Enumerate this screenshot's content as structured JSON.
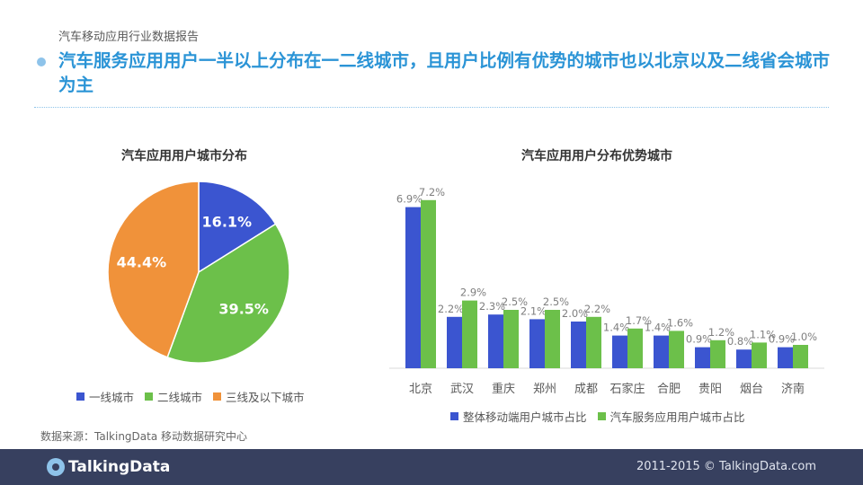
{
  "header": {
    "report_label": "汽车移动应用行业数据报告",
    "headline": "汽车服务应用用户一半以上分布在一二线城市，且用户比例有优势的城市也以北京以及二线省会城市为主"
  },
  "colors": {
    "accent": "#2b94d6",
    "blue": "#3b55d0",
    "green": "#6cc04a",
    "orange": "#f0923a",
    "footer": "#37405f"
  },
  "chart_data": [
    {
      "type": "pie",
      "title": "汽车应用用户城市分布",
      "slices": [
        {
          "label": "一线城市",
          "value": 16.1,
          "value_label": "16.1%",
          "color": "#3b55d0"
        },
        {
          "label": "二线城市",
          "value": 39.5,
          "value_label": "39.5%",
          "color": "#6cc04a"
        },
        {
          "label": "三线及以下城市",
          "value": 44.4,
          "value_label": "44.4%",
          "color": "#f0923a"
        }
      ],
      "legend_position": "bottom"
    },
    {
      "type": "bar",
      "title": "汽车应用用户分布优势城市",
      "categories": [
        "北京",
        "武汉",
        "重庆",
        "郑州",
        "成都",
        "石家庄",
        "合肥",
        "贵阳",
        "烟台",
        "济南"
      ],
      "series": [
        {
          "name": "整体移动端用户城市占比",
          "color": "#3b55d0",
          "values": [
            6.9,
            2.2,
            2.3,
            2.1,
            2.0,
            1.4,
            1.4,
            0.9,
            0.8,
            0.9
          ],
          "labels": [
            "6.9%",
            "2.2%",
            "2.3%",
            "2.1%",
            "2.0%",
            "1.4%",
            "1.4%",
            "0.9%",
            "0.8%",
            "0.9%"
          ]
        },
        {
          "name": "汽车服务应用用户城市占比",
          "color": "#6cc04a",
          "values": [
            7.2,
            2.9,
            2.5,
            2.5,
            2.2,
            1.7,
            1.6,
            1.2,
            1.1,
            1.0
          ],
          "labels": [
            "7.2%",
            "2.9%",
            "2.5%",
            "2.5%",
            "2.2%",
            "1.7%",
            "1.6%",
            "1.2%",
            "1.1%",
            "1.0%"
          ]
        }
      ],
      "ylim": [
        0,
        7.5
      ],
      "legend_position": "bottom"
    }
  ],
  "source": "数据来源：TalkingData 移动数据研究中心",
  "footer": {
    "logo": "TalkingData",
    "copyright": "2011-2015 © TalkingData.com"
  }
}
